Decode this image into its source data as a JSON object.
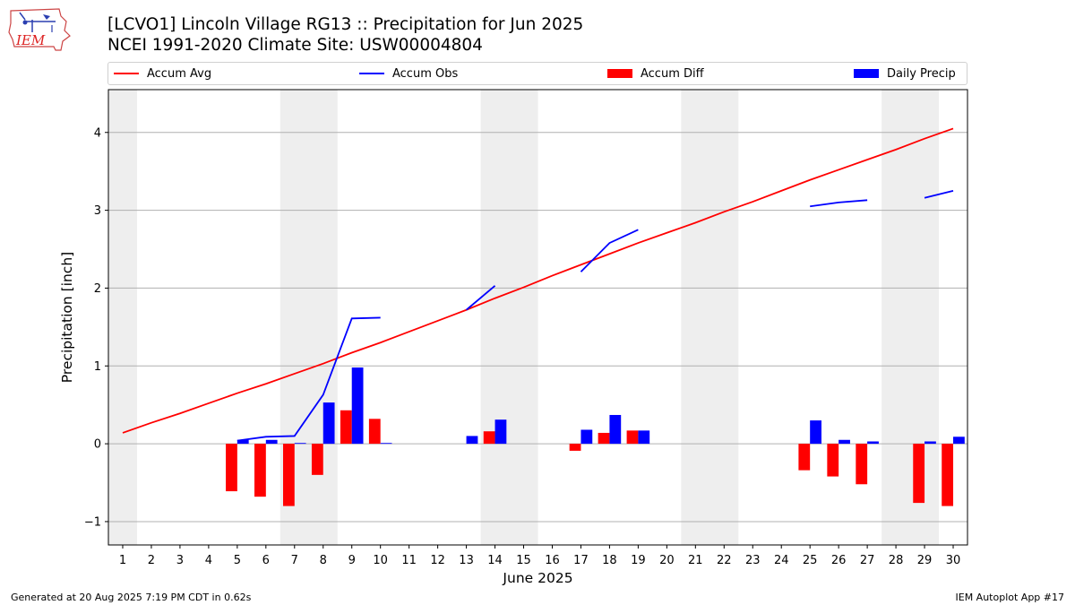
{
  "header": {
    "title_line1": "[LCVO1] Lincoln Village RG13 :: Precipitation for Jun 2025",
    "title_line2": "NCEI 1991-2020 Climate Site: USW00004804"
  },
  "logo": {
    "text": "IEM",
    "icon": "iem-iowa-logo"
  },
  "legend": {
    "accum_avg": "Accum Avg",
    "accum_obs": "Accum Obs",
    "accum_diff": "Accum Diff",
    "daily_precip": "Daily Precip"
  },
  "footer": {
    "left": "Generated at 20 Aug 2025 7:19 PM CDT in 0.62s",
    "right": "IEM Autoplot App #17"
  },
  "colors": {
    "accum_avg": "#ff0000",
    "accum_obs": "#0000ff",
    "accum_diff": "#ff0000",
    "daily_precip": "#0000ff",
    "weekend_shade": "#eeeeee",
    "grid": "#b0b0b0"
  },
  "chart_data": {
    "type": "bar",
    "xlabel": "June 2025",
    "ylabel": "Precipitation [inch]",
    "xlim": [
      0.5,
      30.5
    ],
    "ylim": [
      -1.3,
      4.55
    ],
    "x_ticks": [
      1,
      2,
      3,
      4,
      5,
      6,
      7,
      8,
      9,
      10,
      11,
      12,
      13,
      14,
      15,
      16,
      17,
      18,
      19,
      20,
      21,
      22,
      23,
      24,
      25,
      26,
      27,
      28,
      29,
      30
    ],
    "y_ticks": [
      -1,
      0,
      1,
      2,
      3,
      4
    ],
    "y_tick_labels": [
      "−1",
      "0",
      "1",
      "2",
      "3",
      "4"
    ],
    "grid": "horizontal",
    "shaded_days": [
      [
        0.5,
        1.5
      ],
      [
        6.5,
        8.5
      ],
      [
        13.5,
        15.5
      ],
      [
        20.5,
        22.5
      ],
      [
        27.5,
        29.5
      ]
    ],
    "series": [
      {
        "name": "Accum Avg",
        "type": "line",
        "x": [
          1,
          2,
          3,
          4,
          5,
          6,
          7,
          8,
          9,
          10,
          11,
          12,
          13,
          14,
          15,
          16,
          17,
          18,
          19,
          20,
          21,
          22,
          23,
          24,
          25,
          26,
          27,
          28,
          29,
          30
        ],
        "values": [
          0.14,
          0.27,
          0.39,
          0.52,
          0.65,
          0.77,
          0.9,
          1.03,
          1.17,
          1.3,
          1.44,
          1.58,
          1.72,
          1.87,
          2.01,
          2.16,
          2.3,
          2.44,
          2.58,
          2.71,
          2.84,
          2.98,
          3.11,
          3.25,
          3.39,
          3.52,
          3.65,
          3.78,
          3.92,
          4.05
        ]
      },
      {
        "name": "Accum Obs",
        "type": "line",
        "segments": [
          {
            "x": [
              5,
              6,
              7,
              8,
              9,
              10
            ],
            "values": [
              0.04,
              0.09,
              0.1,
              0.63,
              1.61,
              1.62
            ]
          },
          {
            "x": [
              13,
              14
            ],
            "values": [
              1.72,
              2.03
            ]
          },
          {
            "x": [
              17,
              18,
              19
            ],
            "values": [
              2.21,
              2.58,
              2.75
            ]
          },
          {
            "x": [
              25,
              26,
              27
            ],
            "values": [
              3.05,
              3.1,
              3.13
            ]
          },
          {
            "x": [
              29,
              30
            ],
            "values": [
              3.16,
              3.25
            ]
          }
        ]
      },
      {
        "name": "Accum Diff",
        "type": "bar",
        "x": [
          5,
          6,
          7,
          8,
          9,
          10,
          14,
          17,
          18,
          19,
          25,
          26,
          27,
          29,
          30
        ],
        "values": [
          -0.61,
          -0.68,
          -0.8,
          -0.4,
          0.43,
          0.32,
          0.16,
          -0.09,
          0.14,
          0.17,
          -0.34,
          -0.42,
          -0.52,
          -0.76,
          -0.8
        ]
      },
      {
        "name": "Daily Precip",
        "type": "bar",
        "x": [
          5,
          6,
          7,
          8,
          9,
          10,
          13,
          14,
          17,
          18,
          19,
          25,
          26,
          27,
          29,
          30
        ],
        "values": [
          0.05,
          0.05,
          0.01,
          0.53,
          0.98,
          0.01,
          0.1,
          0.31,
          0.18,
          0.37,
          0.17,
          0.3,
          0.05,
          0.03,
          0.03,
          0.09
        ]
      }
    ]
  }
}
